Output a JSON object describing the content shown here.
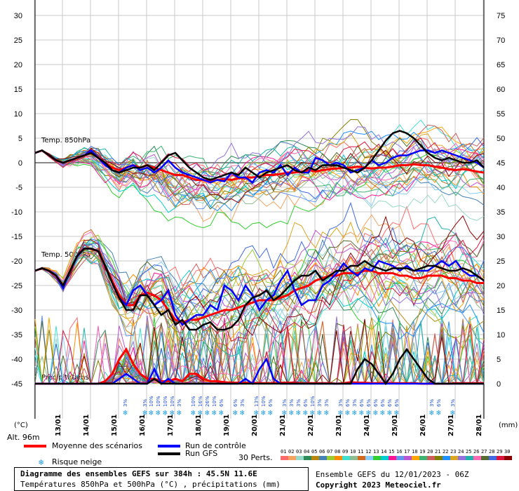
{
  "chart_data": {
    "type": "line",
    "left_axis": {
      "unit": "(°C)",
      "ticks": [
        30,
        25,
        20,
        15,
        10,
        5,
        0,
        -5,
        -10,
        -15,
        -20,
        -25,
        -30,
        -35,
        -40,
        -45
      ],
      "ylim": [
        -45,
        30
      ]
    },
    "right_axis": {
      "unit": "(mm)",
      "ticks": [
        75,
        70,
        65,
        60,
        55,
        50,
        45,
        40,
        35,
        30,
        25,
        20,
        15,
        10,
        5,
        0
      ],
      "ylim": [
        0,
        75
      ]
    },
    "x_ticks": [
      "13/01",
      "14/01",
      "15/01",
      "16/01",
      "17/01",
      "18/01",
      "19/01",
      "20/01",
      "21/01",
      "22/01",
      "23/01",
      "24/01",
      "25/01",
      "26/01",
      "27/01",
      "28/01"
    ],
    "panel_labels": {
      "t850": "Temp. 850hPa",
      "t500": "Temp. 500hPa",
      "precip": "Précipitations"
    },
    "hours": [
      0,
      6,
      12,
      18,
      24,
      30,
      36,
      42,
      48,
      54,
      60,
      66,
      72,
      78,
      84,
      90,
      96,
      102,
      108,
      114,
      120,
      126,
      132,
      138,
      144,
      150,
      156,
      162,
      168,
      174,
      180,
      186,
      192,
      198,
      204,
      210,
      216,
      222,
      228,
      234,
      240,
      246,
      252,
      258,
      264,
      270,
      276,
      282,
      288,
      294,
      300,
      306,
      312,
      318,
      324,
      330,
      336,
      342,
      348,
      354,
      360,
      366,
      372,
      378,
      384
    ],
    "series": [
      {
        "name": "Moyenne des scénarios",
        "role": "mean",
        "color": "#ff0000",
        "t850": [
          2,
          2.5,
          1.5,
          0.5,
          0,
          0.5,
          1,
          1.5,
          2,
          1,
          0,
          -1,
          -1.5,
          -1,
          -0.5,
          -1,
          -0.5,
          -1,
          -1.5,
          -2,
          -2.5,
          -2.5,
          -3,
          -3.5,
          -3.5,
          -3.8,
          -3.5,
          -3.3,
          -3.5,
          -3.2,
          -3,
          -3,
          -2.8,
          -2.5,
          -2.5,
          -2.3,
          -2,
          -2,
          -1.8,
          -1.5,
          -1.8,
          -1.5,
          -1.3,
          -1.2,
          -1,
          -1,
          -0.8,
          -1,
          -1.2,
          -1,
          -1,
          -0.8,
          -0.5,
          -0.5,
          -0.3,
          -0.5,
          -0.5,
          -0.8,
          -1,
          -1.3,
          -1.5,
          -1.3,
          -1.5,
          -1.8,
          -2
        ],
        "t500": [
          -22,
          -21.5,
          -22,
          -23,
          -25,
          -22,
          -19,
          -17.5,
          -17.5,
          -18,
          -21,
          -24,
          -27,
          -29,
          -29,
          -27,
          -26.5,
          -27,
          -28,
          -30,
          -32,
          -32.5,
          -32,
          -32,
          -31.5,
          -31,
          -30.5,
          -30,
          -30,
          -29.5,
          -29,
          -28.5,
          -28,
          -28,
          -28,
          -27.5,
          -27,
          -26,
          -25.5,
          -25,
          -24,
          -23.5,
          -23,
          -23,
          -22.5,
          -22.5,
          -22.5,
          -22,
          -22,
          -22.5,
          -22.5,
          -22.5,
          -23,
          -23,
          -23.5,
          -23.5,
          -23,
          -23,
          -23,
          -23.5,
          -23.5,
          -24,
          -24,
          -24.5,
          -24.5
        ],
        "precip": [
          0,
          0,
          0,
          0,
          0,
          0,
          0,
          0,
          0,
          0,
          0.5,
          2,
          5,
          7,
          4,
          2,
          1,
          1,
          0.5,
          0.5,
          1,
          0.5,
          2,
          2,
          1,
          0.5,
          0.5,
          0.3,
          0.2,
          0.2,
          0.2,
          0.2,
          0.1,
          0.1,
          0.1,
          0.2,
          0.2,
          0.2,
          0.1,
          0.1,
          0.1,
          0.1,
          0.1,
          0,
          0.1,
          0.3,
          0.2,
          0.2,
          0.1,
          0.1,
          0.1,
          0.1,
          0.1,
          0.1,
          0.1,
          0,
          0,
          0,
          0,
          0,
          0.1,
          0.1,
          0.1,
          0.1,
          0.1
        ]
      },
      {
        "name": "Run de contrôle",
        "role": "control",
        "color": "#0000ff",
        "t850": [
          2,
          2.5,
          1.5,
          0.5,
          0,
          0.5,
          1,
          1.5,
          2.5,
          1,
          -0.5,
          -1.5,
          -2,
          -1,
          -0.5,
          -1.5,
          -1,
          -2,
          -1,
          0.5,
          -1,
          -2,
          -2.5,
          -3,
          -3.5,
          -4,
          -3.5,
          -3.8,
          -2,
          -3,
          -3,
          -4,
          -2,
          -1.5,
          -2,
          -0.5,
          -2.5,
          -1,
          -2,
          -2,
          1,
          0.5,
          -0.5,
          0,
          -0.5,
          -2,
          -1.5,
          -1,
          0.5,
          -0.5,
          0,
          1,
          1.5,
          1.5,
          2,
          2.5,
          2.5,
          2,
          2.5,
          2,
          1.5,
          1,
          0.5,
          0,
          -1
        ],
        "t500": [
          -22,
          -21.5,
          -22,
          -23,
          -25.5,
          -22,
          -19,
          -17.5,
          -17.5,
          -18,
          -21,
          -24.5,
          -27.5,
          -29,
          -26,
          -25,
          -27,
          -29,
          -28,
          -26,
          -31,
          -33,
          -32,
          -31,
          -31,
          -29,
          -30,
          -25,
          -26,
          -28,
          -25,
          -27,
          -30,
          -28,
          -27,
          -24,
          -22,
          -26,
          -29,
          -28,
          -28,
          -25,
          -24,
          -22.5,
          -20.5,
          -22,
          -23,
          -21.5,
          -22,
          -20,
          -20.5,
          -21,
          -22,
          -21,
          -22,
          -22,
          -22,
          -21,
          -20,
          -21,
          -20,
          -22,
          -23,
          -23,
          -24
        ],
        "precip": [
          0,
          0,
          0,
          0,
          0,
          0,
          0,
          0,
          0,
          0,
          0,
          0,
          1,
          2,
          1,
          0,
          0,
          3,
          0,
          1,
          0,
          0,
          0,
          0,
          0,
          0,
          0,
          0,
          0,
          0,
          1,
          0,
          3,
          5,
          1,
          0,
          0,
          0,
          0,
          0,
          0,
          0,
          0,
          0,
          0,
          0,
          0,
          0,
          0,
          0,
          0,
          0,
          0,
          0,
          0,
          0,
          0,
          0,
          0,
          0,
          0,
          0,
          0,
          0,
          0
        ]
      },
      {
        "name": "Run GFS",
        "role": "gfs",
        "color": "#000000",
        "t850": [
          2,
          2.5,
          1.5,
          0.5,
          0,
          0.5,
          1,
          1.5,
          2,
          1,
          0,
          -1.5,
          -2,
          -1.5,
          -1,
          -1,
          -0.5,
          -1.5,
          0,
          1.5,
          2,
          0.5,
          -1,
          -2,
          -3,
          -3.5,
          -3,
          -2.5,
          -2,
          -2.5,
          -1,
          -2,
          -3,
          -2,
          -1.5,
          -1,
          -0.5,
          -1.5,
          -2,
          -1,
          -1.5,
          -0.5,
          -0.5,
          -0.5,
          -1,
          -1.5,
          -2,
          -1,
          0.5,
          2.5,
          4.5,
          6,
          6.5,
          6,
          5,
          3.5,
          2,
          1,
          0.5,
          1,
          0.5,
          0,
          0,
          0.5,
          -1
        ],
        "t500": [
          -22,
          -21.5,
          -22,
          -23,
          -25,
          -22,
          -19,
          -17.5,
          -17.5,
          -18,
          -21,
          -24.5,
          -27.5,
          -30,
          -30,
          -27,
          -27,
          -29,
          -31,
          -30,
          -33,
          -32,
          -34,
          -34,
          -33,
          -32.5,
          -34,
          -34,
          -33.5,
          -32,
          -29,
          -27.5,
          -27,
          -26,
          -28,
          -27,
          -25.5,
          -24,
          -23,
          -23,
          -22,
          -24,
          -23,
          -22,
          -22,
          -21,
          -21,
          -20,
          -21,
          -21.5,
          -22,
          -21.5,
          -21.5,
          -21.5,
          -22,
          -21.5,
          -21,
          -21,
          -21.5,
          -22,
          -22,
          -21.5,
          -22,
          -23,
          -24
        ],
        "precip": [
          0,
          0,
          0,
          0,
          0,
          0,
          0,
          0,
          0,
          0,
          0,
          0,
          0,
          0,
          0,
          0,
          0,
          1,
          0,
          0,
          0,
          0,
          0,
          0,
          0,
          0,
          0,
          0,
          0,
          0,
          0,
          0,
          0,
          0,
          0,
          0,
          0,
          0,
          0,
          0,
          0,
          0,
          0,
          0,
          0,
          0,
          3,
          5,
          4,
          2,
          0,
          2,
          5,
          7,
          5,
          3,
          1,
          0,
          0,
          0,
          0,
          0,
          0,
          0,
          0
        ]
      }
    ],
    "perturbations": {
      "label": "30 Perts.",
      "ids": [
        "01",
        "02",
        "03",
        "04",
        "05",
        "06",
        "07",
        "08",
        "09",
        "10",
        "11",
        "12",
        "13",
        "14",
        "15",
        "16",
        "17",
        "18",
        "19",
        "20",
        "21",
        "22",
        "23",
        "24",
        "25",
        "26",
        "27",
        "28",
        "29",
        "30"
      ],
      "colors": [
        "#ff6b6b",
        "#f4a460",
        "#98d8c8",
        "#2e8b57",
        "#b8860b",
        "#4682b4",
        "#9acd32",
        "#ff8c00",
        "#40e0d0",
        "#8fbc8f",
        "#d2691e",
        "#87cefa",
        "#32cd32",
        "#00ced1",
        "#ff1493",
        "#6495ed",
        "#ba55d3",
        "#ffa500",
        "#3cb371",
        "#cd5c5c",
        "#808000",
        "#1e90ff",
        "#daa520",
        "#9370db",
        "#20b2aa",
        "#ff69b4",
        "#556b2f",
        "#4169e1",
        "#dc143c",
        "#8b0000"
      ]
    },
    "snow_risk": [
      {
        "day_index": 3.08,
        "label": "3%"
      },
      {
        "day_index": 3.78,
        "label": "3%"
      },
      {
        "day_index": 4.0,
        "label": "10%"
      },
      {
        "day_index": 4.25,
        "label": "10%"
      },
      {
        "day_index": 4.5,
        "label": "10%"
      },
      {
        "day_index": 4.75,
        "label": "10%"
      },
      {
        "day_index": 5.0,
        "label": "3%"
      },
      {
        "day_index": 5.5,
        "label": "10%"
      },
      {
        "day_index": 5.75,
        "label": "16%"
      },
      {
        "day_index": 6.0,
        "label": "26%"
      },
      {
        "day_index": 6.25,
        "label": "10%"
      },
      {
        "day_index": 6.5,
        "label": "6%"
      },
      {
        "day_index": 7.0,
        "label": "6%"
      },
      {
        "day_index": 7.25,
        "label": "3%"
      },
      {
        "day_index": 7.75,
        "label": "13%"
      },
      {
        "day_index": 8.0,
        "label": "10%"
      },
      {
        "day_index": 8.25,
        "label": "6%"
      },
      {
        "day_index": 8.75,
        "label": "3%"
      },
      {
        "day_index": 9.0,
        "label": "3%"
      },
      {
        "day_index": 9.25,
        "label": "3%"
      },
      {
        "day_index": 9.5,
        "label": "6%"
      },
      {
        "day_index": 9.75,
        "label": "10%"
      },
      {
        "day_index": 10.0,
        "label": "3%"
      },
      {
        "day_index": 10.25,
        "label": "3%"
      },
      {
        "day_index": 10.75,
        "label": "3%"
      },
      {
        "day_index": 11.0,
        "label": "6%"
      },
      {
        "day_index": 11.25,
        "label": "3%"
      },
      {
        "day_index": 11.5,
        "label": "6%"
      },
      {
        "day_index": 11.75,
        "label": "6%"
      },
      {
        "day_index": 12.0,
        "label": "6%"
      },
      {
        "day_index": 12.25,
        "label": "6%"
      },
      {
        "day_index": 12.5,
        "label": "6%"
      },
      {
        "day_index": 12.75,
        "label": "6%"
      },
      {
        "day_index": 14.0,
        "label": "3%"
      },
      {
        "day_index": 14.25,
        "label": "6%"
      },
      {
        "day_index": 14.75,
        "label": "3%"
      }
    ]
  },
  "labels": {
    "left_unit": "(°C)",
    "right_unit": "(mm)",
    "altitude": "Alt. 96m",
    "legend_mean": "Moyenne des scénarios",
    "legend_control": "Run de contrôle",
    "legend_gfs": "Run GFS",
    "legend_snow": "Risque neige",
    "perts": "30 Perts.",
    "footer_title": "Diagramme des ensembles GEFS sur 384h : 45.5N 11.6E",
    "footer_sub": "Températures 850hPa et 500hPa (°C) , précipitations (mm)",
    "footer_run": "Ensemble GEFS du 12/01/2023 - 06Z",
    "footer_copy": "Copyright 2023 Meteociel.fr"
  },
  "colors": {
    "mean": "#ff0000",
    "control": "#0000ff",
    "gfs": "#000000",
    "snow": "#1e9be0",
    "grid": "#c8c8c8",
    "zero_line": "#888888"
  }
}
